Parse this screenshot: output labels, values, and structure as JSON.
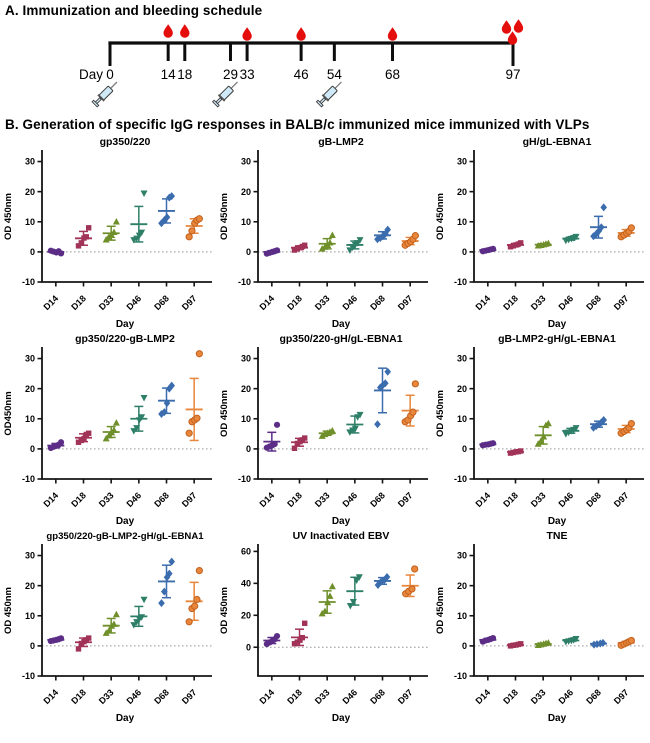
{
  "panel_a": {
    "title": "A. Immunization and bleeding schedule",
    "day_prefix_label": "Day",
    "timeline_days": [
      0,
      14,
      18,
      29,
      33,
      46,
      54,
      68,
      97
    ],
    "bleed_days": [
      14,
      18,
      33,
      46,
      68
    ],
    "final_bleed_day": 97,
    "final_bleed_drop_count": 3,
    "immunization_days": [
      0,
      29,
      54
    ],
    "blood_drop_color": "#e40f0c",
    "syringe_body_color": "#cfe9f7",
    "axis_color": "#0d0d0d"
  },
  "panel_b": {
    "title": "B. Generation of specific IgG responses in BALB/c immunized mice immunized with VLPs",
    "group_styles": [
      {
        "label": "D14",
        "marker": "circle",
        "color": "#5c2d87"
      },
      {
        "label": "D18",
        "marker": "square",
        "color": "#a23358"
      },
      {
        "label": "D33",
        "marker": "triangle-up",
        "color": "#6f8f2a"
      },
      {
        "label": "D46",
        "marker": "triangle-down",
        "color": "#2e7f68"
      },
      {
        "label": "D68",
        "marker": "diamond",
        "color": "#3b6cae"
      },
      {
        "label": "D97",
        "marker": "circle",
        "color": "#e8863b",
        "edge": "#c2611e"
      }
    ]
  },
  "chart_data": [
    {
      "type": "scatter",
      "title": "gp350/220",
      "xlabel": "Day",
      "ylabel": "OD 450nm",
      "ylim": [
        -10,
        33.5
      ],
      "yticks": [
        -10,
        0,
        10,
        20,
        30
      ],
      "zero_line": true,
      "categories": [
        "D14",
        "D18",
        "D33",
        "D46",
        "D68",
        "D97"
      ],
      "groups": [
        {
          "points": [
            0.4,
            0.1,
            -0.2,
            0.2,
            -0.5
          ],
          "mean": 0.0,
          "err_lo": -0.5,
          "err_hi": 0.5
        },
        {
          "points": [
            2.0,
            3.0,
            4.6,
            5.0,
            8.0
          ],
          "mean": 4.5,
          "err_lo": 2.2,
          "err_hi": 6.8
        },
        {
          "points": [
            4.0,
            5.0,
            5.5,
            6.5,
            10.0
          ],
          "mean": 6.2,
          "err_lo": 3.9,
          "err_hi": 8.5
        },
        {
          "points": [
            4.0,
            4.5,
            5.5,
            6.5,
            19.5
          ],
          "mean": 9.2,
          "err_lo": 3.3,
          "err_hi": 15.1
        },
        {
          "points": [
            9.5,
            10.5,
            11.5,
            18.0,
            18.5
          ],
          "mean": 13.6,
          "err_lo": 9.6,
          "err_hi": 17.6
        },
        {
          "points": [
            5.0,
            7.0,
            9.5,
            10.5,
            11.0
          ],
          "mean": 8.6,
          "err_lo": 6.2,
          "err_hi": 11.0
        }
      ]
    },
    {
      "type": "scatter",
      "title": "gB-LMP2",
      "xlabel": "Day",
      "ylabel": "OD 450nm",
      "ylim": [
        -10,
        33.5
      ],
      "yticks": [
        -10,
        0,
        10,
        20,
        30
      ],
      "zero_line": true,
      "categories": [
        "D14",
        "D18",
        "D33",
        "D46",
        "D68",
        "D97"
      ],
      "groups": [
        {
          "points": [
            -0.6,
            -0.3,
            0.0,
            0.2,
            0.5
          ],
          "mean": 0.0,
          "err_lo": -0.4,
          "err_hi": 0.4
        },
        {
          "points": [
            0.6,
            1.0,
            1.4,
            1.8,
            2.2
          ],
          "mean": 1.4,
          "err_lo": 0.8,
          "err_hi": 2.0
        },
        {
          "points": [
            1.0,
            1.6,
            2.2,
            3.0,
            5.5
          ],
          "mean": 2.7,
          "err_lo": 1.0,
          "err_hi": 4.4
        },
        {
          "points": [
            0.6,
            1.5,
            2.4,
            3.0,
            4.0
          ],
          "mean": 2.3,
          "err_lo": 1.0,
          "err_hi": 3.6
        },
        {
          "points": [
            4.2,
            4.6,
            5.2,
            6.0,
            7.4
          ],
          "mean": 5.5,
          "err_lo": 4.3,
          "err_hi": 6.7
        },
        {
          "points": [
            2.2,
            2.8,
            3.4,
            4.2,
            5.4
          ],
          "mean": 3.6,
          "err_lo": 2.4,
          "err_hi": 4.8
        }
      ]
    },
    {
      "type": "scatter",
      "title": "gH/gL-EBNA1",
      "xlabel": "Day",
      "ylabel": "OD 450nm",
      "ylim": [
        -10,
        33.5
      ],
      "yticks": [
        -10,
        0,
        10,
        20,
        30
      ],
      "zero_line": true,
      "categories": [
        "D14",
        "D18",
        "D33",
        "D46",
        "D68",
        "D97"
      ],
      "groups": [
        {
          "points": [
            0.2,
            0.4,
            0.6,
            0.8,
            1.0
          ],
          "mean": 0.6,
          "err_lo": 0.3,
          "err_hi": 0.9
        },
        {
          "points": [
            1.7,
            2.0,
            2.3,
            2.6,
            3.0
          ],
          "mean": 2.3,
          "err_lo": 1.8,
          "err_hi": 2.8
        },
        {
          "points": [
            2.0,
            2.2,
            2.4,
            2.6,
            2.8
          ],
          "mean": 2.4,
          "err_lo": 2.1,
          "err_hi": 2.7
        },
        {
          "points": [
            3.8,
            4.1,
            4.4,
            4.7,
            5.1
          ],
          "mean": 4.4,
          "err_lo": 3.9,
          "err_hi": 4.9
        },
        {
          "points": [
            5.2,
            6.0,
            7.0,
            8.2,
            14.8
          ],
          "mean": 8.2,
          "err_lo": 4.6,
          "err_hi": 11.8
        },
        {
          "points": [
            5.0,
            5.6,
            6.2,
            6.8,
            8.0
          ],
          "mean": 6.3,
          "err_lo": 5.2,
          "err_hi": 7.4
        }
      ]
    },
    {
      "type": "scatter",
      "title": "gp350/220-gB-LMP2",
      "xlabel": "Day",
      "ylabel": "OD450nm",
      "ylim": [
        -10,
        33.5
      ],
      "yticks": [
        -10,
        0,
        10,
        20,
        30
      ],
      "zero_line": true,
      "categories": [
        "D14",
        "D18",
        "D33",
        "D46",
        "D68",
        "D97"
      ],
      "groups": [
        {
          "points": [
            0.3,
            0.7,
            1.0,
            1.4,
            2.2
          ],
          "mean": 1.1,
          "err_lo": 0.4,
          "err_hi": 1.8
        },
        {
          "points": [
            2.2,
            2.8,
            3.4,
            4.8,
            5.2
          ],
          "mean": 3.7,
          "err_lo": 2.4,
          "err_hi": 5.0
        },
        {
          "points": [
            3.4,
            4.4,
            5.4,
            6.2,
            8.6
          ],
          "mean": 5.6,
          "err_lo": 3.8,
          "err_hi": 7.4
        },
        {
          "points": [
            6.0,
            7.0,
            9.6,
            10.6,
            17.0
          ],
          "mean": 10.0,
          "err_lo": 5.9,
          "err_hi": 14.1
        },
        {
          "points": [
            11.6,
            12.2,
            15.2,
            20.0,
            21.0
          ],
          "mean": 16.0,
          "err_lo": 11.8,
          "err_hi": 20.2
        },
        {
          "points": [
            5.2,
            9.0,
            9.6,
            10.2,
            31.6
          ],
          "mean": 13.1,
          "err_lo": 2.8,
          "err_hi": 23.4
        }
      ]
    },
    {
      "type": "scatter",
      "title": "gp350/220-gH/gL-EBNA1",
      "xlabel": "Day",
      "ylabel": "OD 450nm",
      "ylim": [
        -10,
        33.5
      ],
      "yticks": [
        -10,
        0,
        10,
        20,
        30
      ],
      "zero_line": true,
      "categories": [
        "D14",
        "D18",
        "D33",
        "D46",
        "D68",
        "D97"
      ],
      "groups": [
        {
          "points": [
            0.4,
            0.8,
            1.2,
            1.6,
            8.0
          ],
          "mean": 2.4,
          "err_lo": -0.7,
          "err_hi": 5.5
        },
        {
          "points": [
            0.2,
            1.8,
            2.4,
            3.0,
            3.6
          ],
          "mean": 2.2,
          "err_lo": 0.9,
          "err_hi": 3.5
        },
        {
          "points": [
            4.2,
            4.8,
            5.2,
            5.6,
            6.0
          ],
          "mean": 5.2,
          "err_lo": 4.5,
          "err_hi": 5.9
        },
        {
          "points": [
            5.6,
            6.2,
            6.8,
            10.6,
            11.4
          ],
          "mean": 8.1,
          "err_lo": 5.3,
          "err_hi": 10.9
        },
        {
          "points": [
            8.2,
            20.4,
            21.2,
            21.8,
            25.6
          ],
          "mean": 19.4,
          "err_lo": 12.0,
          "err_hi": 26.8
        },
        {
          "points": [
            9.0,
            9.6,
            11.0,
            12.2,
            21.6
          ],
          "mean": 12.7,
          "err_lo": 7.6,
          "err_hi": 17.8
        }
      ]
    },
    {
      "type": "scatter",
      "title": "gB-LMP2-gH/gL-EBNA1",
      "xlabel": "Day",
      "ylabel": "OD 450nm",
      "ylim": [
        -10,
        33.5
      ],
      "yticks": [
        -10,
        0,
        10,
        20,
        30
      ],
      "zero_line": true,
      "categories": [
        "D14",
        "D18",
        "D33",
        "D46",
        "D68",
        "D97"
      ],
      "groups": [
        {
          "points": [
            1.2,
            1.4,
            1.5,
            1.7,
            1.9
          ],
          "mean": 1.5,
          "err_lo": 1.2,
          "err_hi": 1.8
        },
        {
          "points": [
            -1.4,
            -1.2,
            -1.0,
            -0.9,
            -0.7
          ],
          "mean": -1.0,
          "err_lo": -1.3,
          "err_hi": -0.7
        },
        {
          "points": [
            1.6,
            2.6,
            4.0,
            7.8,
            8.4
          ],
          "mean": 4.5,
          "err_lo": 1.6,
          "err_hi": 7.4
        },
        {
          "points": [
            5.0,
            5.5,
            6.0,
            6.4,
            7.0
          ],
          "mean": 6.0,
          "err_lo": 5.2,
          "err_hi": 6.8
        },
        {
          "points": [
            7.0,
            7.6,
            8.2,
            8.8,
            9.6
          ],
          "mean": 8.2,
          "err_lo": 7.2,
          "err_hi": 9.2
        },
        {
          "points": [
            5.2,
            5.8,
            6.4,
            7.0,
            8.4
          ],
          "mean": 6.6,
          "err_lo": 5.4,
          "err_hi": 7.8
        }
      ]
    },
    {
      "type": "scatter",
      "title": "gp350/220-gB-LMP2-gH/gL-EBNA1",
      "xlabel": "Day",
      "ylabel": "OD 450nm",
      "ylim": [
        -10,
        33.5
      ],
      "yticks": [
        -10,
        0,
        10,
        20,
        30
      ],
      "zero_line": true,
      "categories": [
        "D14",
        "D18",
        "D33",
        "D46",
        "D68",
        "D97"
      ],
      "groups": [
        {
          "points": [
            1.6,
            1.8,
            2.0,
            2.2,
            2.5
          ],
          "mean": 2.0,
          "err_lo": 1.7,
          "err_hi": 2.3
        },
        {
          "points": [
            -1.0,
            0.8,
            1.4,
            2.0,
            2.6
          ],
          "mean": 1.2,
          "err_lo": -0.2,
          "err_hi": 2.6
        },
        {
          "points": [
            4.2,
            5.0,
            6.6,
            7.2,
            10.4
          ],
          "mean": 6.7,
          "err_lo": 4.3,
          "err_hi": 9.1
        },
        {
          "points": [
            7.0,
            8.0,
            9.0,
            9.6,
            15.4
          ],
          "mean": 9.8,
          "err_lo": 6.5,
          "err_hi": 13.1
        },
        {
          "points": [
            14.2,
            18.0,
            22.8,
            24.0,
            28.0
          ],
          "mean": 21.4,
          "err_lo": 16.0,
          "err_hi": 26.8
        },
        {
          "points": [
            8.0,
            12.4,
            13.2,
            15.4,
            25.0
          ],
          "mean": 14.8,
          "err_lo": 8.5,
          "err_hi": 21.1
        }
      ]
    },
    {
      "type": "scatter",
      "title": "UV Inactivated EBV",
      "xlabel": "Day",
      "ylabel": "OD 450nm",
      "ylim": [
        -18,
        64
      ],
      "yticks": [
        0,
        20,
        40,
        60
      ],
      "zero_line": true,
      "categories": [
        "D14",
        "D18",
        "D33",
        "D46",
        "D68",
        "D97"
      ],
      "groups": [
        {
          "points": [
            2.0,
            3.0,
            4.0,
            5.0,
            7.0
          ],
          "mean": 4.2,
          "err_lo": 2.3,
          "err_hi": 6.1
        },
        {
          "points": [
            2.2,
            3.2,
            4.4,
            6.0,
            15.0
          ],
          "mean": 6.2,
          "err_lo": 1.1,
          "err_hi": 11.3
        },
        {
          "points": [
            21.0,
            22.5,
            28.0,
            32.0,
            38.0
          ],
          "mean": 28.3,
          "err_lo": 21.3,
          "err_hi": 35.3
        },
        {
          "points": [
            26.0,
            28.5,
            42.0,
            44.0
          ],
          "mean": 35.1,
          "err_lo": 26.4,
          "err_hi": 43.8
        },
        {
          "points": [
            39.0,
            41.0,
            42.0,
            44.0
          ],
          "mean": 41.5,
          "err_lo": 39.4,
          "err_hi": 43.6
        },
        {
          "points": [
            33.5,
            35.0,
            36.5,
            49.0
          ],
          "mean": 38.5,
          "err_lo": 31.8,
          "err_hi": 45.2
        }
      ]
    },
    {
      "type": "scatter",
      "title": "TNE",
      "xlabel": "Day",
      "ylabel": "OD 450nm",
      "ylim": [
        -10,
        33.5
      ],
      "yticks": [
        -10,
        0,
        10,
        20,
        30
      ],
      "zero_line": true,
      "categories": [
        "D14",
        "D18",
        "D33",
        "D46",
        "D68",
        "D97"
      ],
      "groups": [
        {
          "points": [
            1.4,
            1.8,
            2.0,
            2.3,
            2.6
          ],
          "mean": 2.0,
          "err_lo": 1.6,
          "err_hi": 2.4
        },
        {
          "points": [
            0.0,
            0.2,
            0.3,
            0.5,
            0.7
          ],
          "mean": 0.3,
          "err_lo": 0.1,
          "err_hi": 0.5
        },
        {
          "points": [
            0.2,
            0.4,
            0.6,
            0.8,
            1.0
          ],
          "mean": 0.6,
          "err_lo": 0.3,
          "err_hi": 0.9
        },
        {
          "points": [
            1.4,
            1.6,
            1.8,
            2.0,
            2.4
          ],
          "mean": 1.8,
          "err_lo": 1.5,
          "err_hi": 2.1
        },
        {
          "points": [
            0.4,
            0.6,
            0.8,
            1.0
          ],
          "mean": 0.7,
          "err_lo": 0.5,
          "err_hi": 0.9
        },
        {
          "points": [
            0.2,
            0.6,
            1.0,
            1.4,
            1.8
          ],
          "mean": 1.0,
          "err_lo": 0.5,
          "err_hi": 1.5
        }
      ]
    }
  ]
}
